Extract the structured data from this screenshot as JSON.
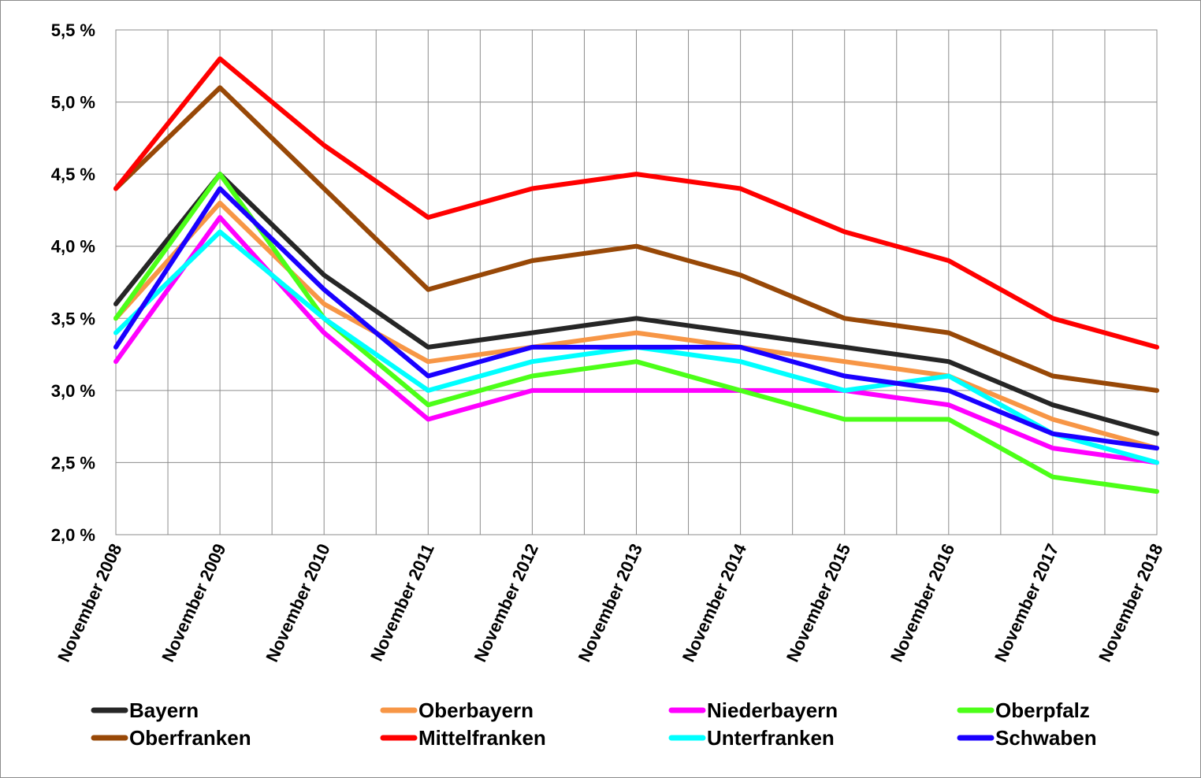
{
  "chart_data": {
    "type": "line",
    "categories": [
      "November 2008",
      "November 2009",
      "November 2010",
      "November 2011",
      "November 2012",
      "November 2013",
      "November 2014",
      "November 2015",
      "November 2016",
      "November 2017",
      "November 2018"
    ],
    "ylim": [
      2.0,
      5.5
    ],
    "yticks": [
      2.0,
      2.5,
      3.0,
      3.5,
      4.0,
      4.5,
      5.0,
      5.5
    ],
    "ytick_labels": [
      "2,0 %",
      "2,5 %",
      "3,0 %",
      "3,5 %",
      "4,0 %",
      "4,5 %",
      "5,0 %",
      "5,5 %"
    ],
    "grid": true,
    "legend_position": "bottom",
    "series": [
      {
        "name": "Bayern",
        "color": "#262626",
        "values": [
          3.6,
          4.5,
          3.8,
          3.3,
          3.4,
          3.5,
          3.4,
          3.3,
          3.2,
          2.9,
          2.7
        ]
      },
      {
        "name": "Oberbayern",
        "color": "#f79646",
        "values": [
          3.5,
          4.3,
          3.6,
          3.2,
          3.3,
          3.4,
          3.3,
          3.2,
          3.1,
          2.8,
          2.6
        ]
      },
      {
        "name": "Niederbayern",
        "color": "#ff00ff",
        "values": [
          3.2,
          4.2,
          3.4,
          2.8,
          3.0,
          3.0,
          3.0,
          3.0,
          2.9,
          2.6,
          2.5
        ]
      },
      {
        "name": "Oberpfalz",
        "color": "#4cff18",
        "values": [
          3.5,
          4.5,
          3.5,
          2.9,
          3.1,
          3.2,
          3.0,
          2.8,
          2.8,
          2.4,
          2.3
        ]
      },
      {
        "name": "Oberfranken",
        "color": "#984807",
        "values": [
          4.4,
          5.1,
          4.4,
          3.7,
          3.9,
          4.0,
          3.8,
          3.5,
          3.4,
          3.1,
          3.0
        ]
      },
      {
        "name": "Mittelfranken",
        "color": "#ff0000",
        "values": [
          4.4,
          5.3,
          4.7,
          4.2,
          4.4,
          4.5,
          4.4,
          4.1,
          3.9,
          3.5,
          3.3
        ]
      },
      {
        "name": "Unterfranken",
        "color": "#00ffff",
        "values": [
          3.4,
          4.1,
          3.5,
          3.0,
          3.2,
          3.3,
          3.2,
          3.0,
          3.1,
          2.7,
          2.5
        ]
      },
      {
        "name": "Schwaben",
        "color": "#1a00ff",
        "values": [
          3.3,
          4.4,
          3.7,
          3.1,
          3.3,
          3.3,
          3.3,
          3.1,
          3.0,
          2.7,
          2.6
        ]
      }
    ]
  }
}
